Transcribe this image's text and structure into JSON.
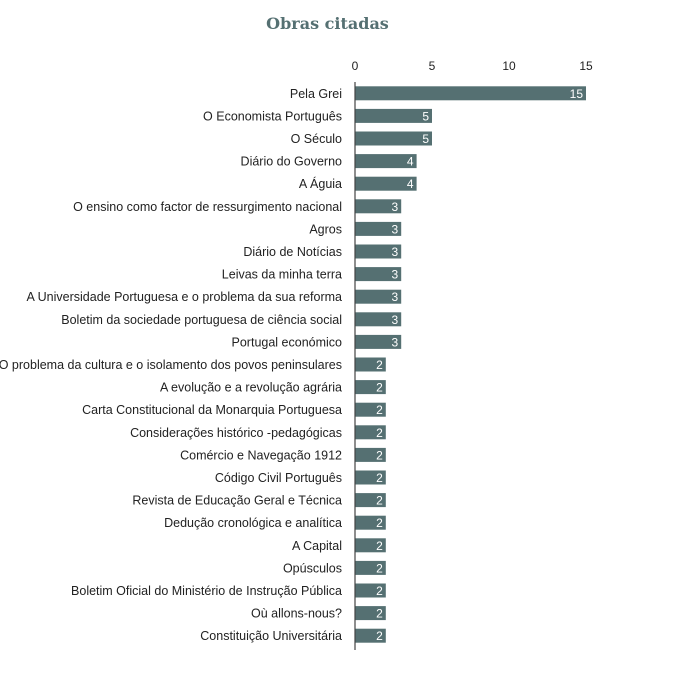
{
  "chart_data": {
    "type": "bar",
    "orientation": "horizontal",
    "title": "Obras citadas",
    "xlabel": "",
    "ylabel": "",
    "xlim": [
      0,
      15
    ],
    "xticks": [
      0,
      5,
      10,
      15
    ],
    "x_axis_position": "top",
    "grid": false,
    "bar_color": "#557072",
    "categories": [
      "Pela Grei",
      "O Economista Português",
      "O Século",
      "Diário do Governo",
      "A Águia",
      "O ensino como factor de ressurgimento nacional",
      "Agros",
      "Diário de Notícias",
      "Leivas da minha terra",
      "A Universidade Portuguesa e o problema da sua reforma",
      "Boletim da sociedade portuguesa de ciência social",
      "Portugal económico",
      "O problema da cultura e o isolamento dos povos peninsulares",
      "A evolução e a revolução agrária",
      "Carta Constitucional da Monarquia Portuguesa",
      "Considerações histórico -pedagógicas",
      "Comércio e Navegação 1912",
      "Código Civil Português",
      "Revista de Educação Geral e Técnica",
      "Dedução cronológica e analítica",
      "A Capital",
      "Opúsculos",
      "Boletim Oficial do Ministério de Instrução Pública",
      "Où allons-nous?",
      "Constituição Universitária"
    ],
    "values": [
      15,
      5,
      5,
      4,
      4,
      3,
      3,
      3,
      3,
      3,
      3,
      3,
      2,
      2,
      2,
      2,
      2,
      2,
      2,
      2,
      2,
      2,
      2,
      2,
      2
    ]
  }
}
